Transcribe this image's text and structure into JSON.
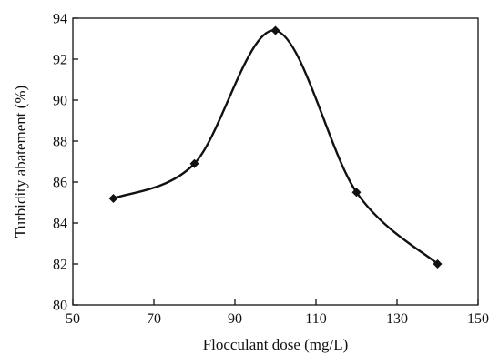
{
  "chart_data": {
    "type": "line",
    "title": "",
    "xlabel": "Flocculant dose (mg/L)",
    "ylabel": "Turbidity abatement (%)",
    "xlim": [
      50,
      150
    ],
    "ylim": [
      80,
      94
    ],
    "xticks": [
      50,
      70,
      90,
      110,
      130,
      150
    ],
    "yticks": [
      80,
      82,
      84,
      86,
      88,
      90,
      92,
      94
    ],
    "grid": false,
    "marker": "diamond",
    "smooth": true,
    "series": [
      {
        "x": [
          60,
          80,
          100,
          120,
          140
        ],
        "y": [
          85.2,
          86.9,
          93.4,
          85.5,
          82.0
        ]
      }
    ]
  }
}
